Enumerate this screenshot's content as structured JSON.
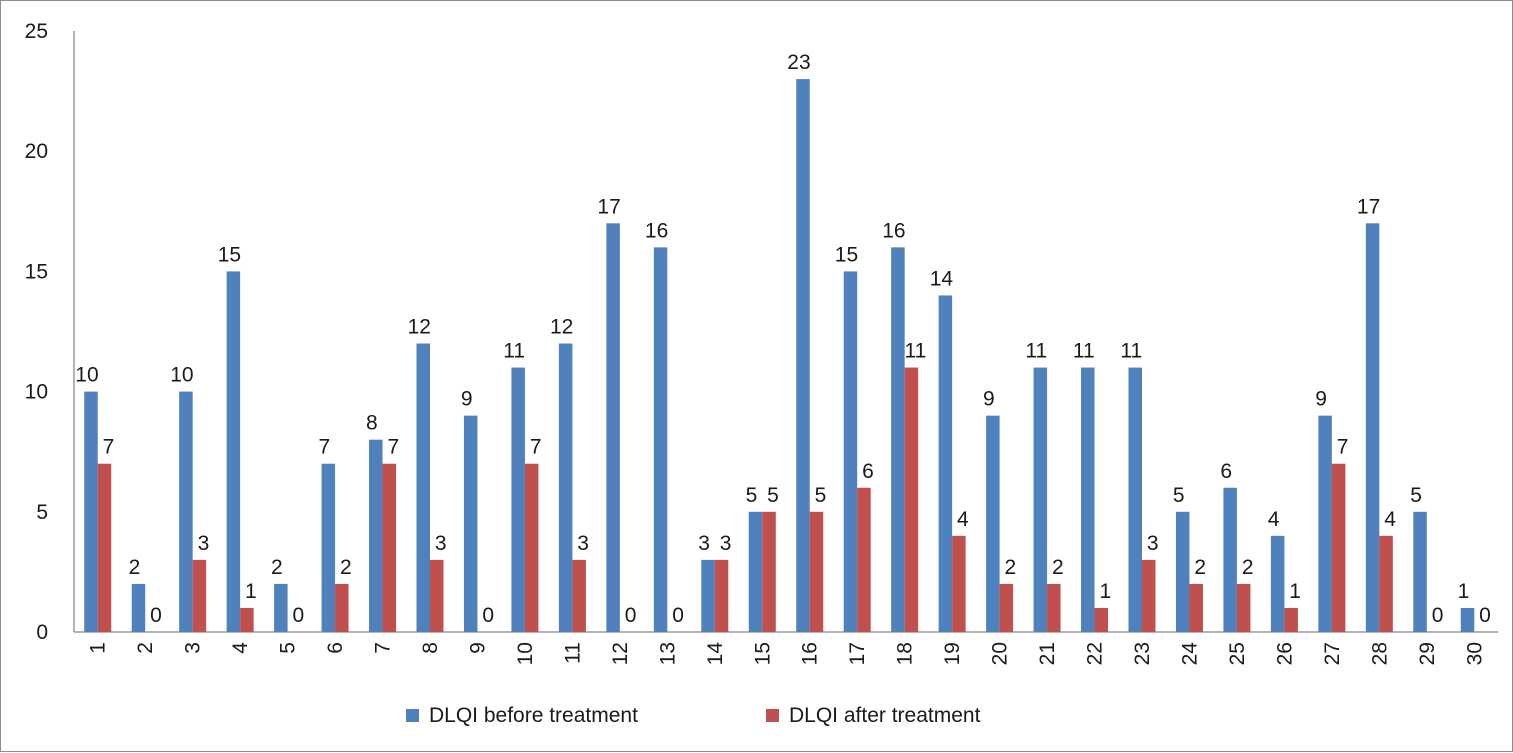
{
  "chart_data": {
    "type": "bar",
    "categories": [
      "1",
      "2",
      "3",
      "4",
      "5",
      "6",
      "7",
      "8",
      "9",
      "10",
      "11",
      "12",
      "13",
      "14",
      "15",
      "16",
      "17",
      "18",
      "19",
      "20",
      "21",
      "22",
      "23",
      "24",
      "25",
      "26",
      "27",
      "28",
      "29",
      "30"
    ],
    "series": [
      {
        "name": "DLQI before treatment",
        "color": "#4f81bd",
        "values": [
          10,
          2,
          10,
          15,
          2,
          7,
          8,
          12,
          9,
          11,
          12,
          17,
          16,
          3,
          5,
          23,
          15,
          16,
          14,
          9,
          11,
          11,
          11,
          5,
          6,
          4,
          9,
          17,
          5,
          1
        ]
      },
      {
        "name": "DLQI after treatment",
        "color": "#c0504d",
        "values": [
          7,
          0,
          3,
          1,
          0,
          2,
          7,
          3,
          0,
          7,
          3,
          0,
          0,
          3,
          5,
          5,
          6,
          11,
          4,
          2,
          2,
          1,
          3,
          2,
          2,
          1,
          7,
          4,
          0,
          0
        ]
      }
    ],
    "yticks": [
      0,
      5,
      10,
      15,
      20,
      25
    ],
    "ylim": [
      0,
      25
    ],
    "legend_position": "bottom",
    "grid": false
  }
}
